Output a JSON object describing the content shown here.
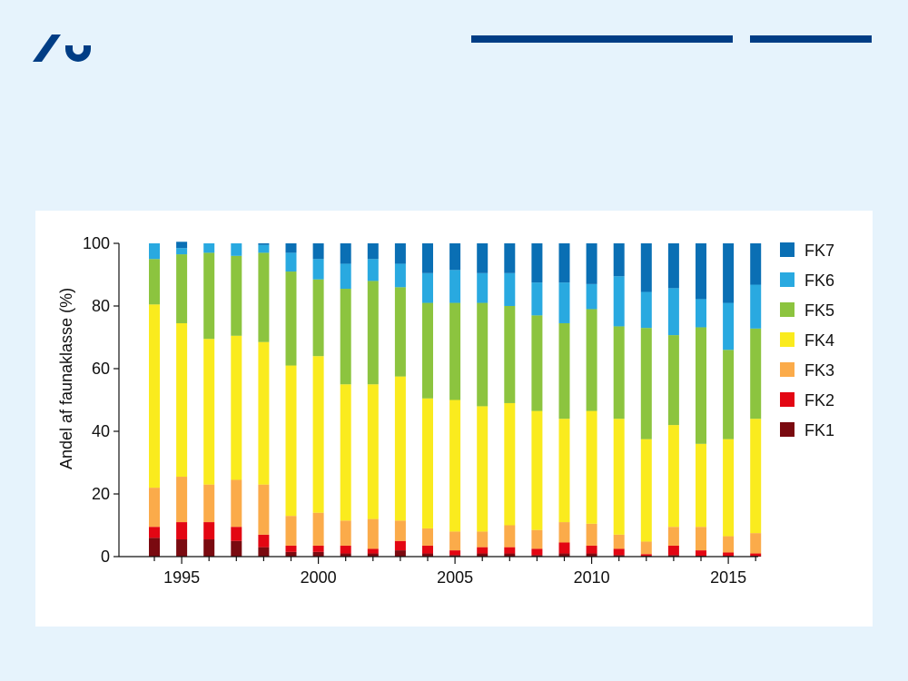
{
  "colors": {
    "background": "#e6f3fc",
    "brand_blue": "#003d85",
    "panel": "#ffffff"
  },
  "header": {
    "logo_icon": "university-logo-icon"
  },
  "chart_data": {
    "type": "bar",
    "stacked": true,
    "title": "",
    "xlabel": "",
    "ylabel": "Andel af faunaklasse (%)",
    "ylim": [
      0,
      100
    ],
    "yticks": [
      0,
      20,
      40,
      60,
      80,
      100
    ],
    "xticks": [
      1995,
      2000,
      2005,
      2010,
      2015
    ],
    "grid": false,
    "legend_position": "right",
    "categories": [
      1994,
      1995,
      1996,
      1997,
      1998,
      1999,
      2000,
      2001,
      2002,
      2003,
      2004,
      2005,
      2006,
      2007,
      2008,
      2009,
      2010,
      2011,
      2012,
      2013,
      2014,
      2015,
      2016
    ],
    "series": [
      {
        "name": "FK1",
        "color": "#7a0a10",
        "values": [
          6,
          5.5,
          5.5,
          5,
          3,
          1.5,
          1.5,
          1,
          1,
          2,
          1,
          0.5,
          1,
          1,
          0.5,
          1,
          1,
          0.5,
          0.3,
          0.5,
          0.3,
          0.3,
          0.3
        ]
      },
      {
        "name": "FK2",
        "color": "#e30613",
        "values": [
          3.5,
          5.5,
          5.5,
          4.5,
          4,
          2,
          2,
          2.5,
          1.5,
          3,
          2.5,
          1.5,
          2,
          2,
          2,
          3.5,
          2.5,
          2,
          0.5,
          3,
          1.7,
          1,
          0.7
        ]
      },
      {
        "name": "FK3",
        "color": "#fbab4a",
        "values": [
          12.5,
          14.5,
          12,
          15,
          16,
          9.5,
          10.5,
          8,
          9.5,
          6.5,
          5.5,
          6,
          5,
          7,
          6,
          6.5,
          7,
          4.5,
          4,
          6,
          7.5,
          5.2,
          6.5
        ]
      },
      {
        "name": "FK4",
        "color": "#faeb1e",
        "values": [
          58.5,
          49,
          46.5,
          46,
          45.5,
          48,
          50,
          43.5,
          43,
          46,
          41.5,
          42,
          40,
          39,
          38,
          33,
          36,
          37,
          32.7,
          32.5,
          26.5,
          31,
          36.5
        ]
      },
      {
        "name": "FK5",
        "color": "#8cc43f",
        "values": [
          14.5,
          22,
          27.5,
          25.5,
          28.5,
          30,
          24.5,
          30.5,
          33,
          28.5,
          30.5,
          31,
          33,
          31,
          30.5,
          30.5,
          32.5,
          29.5,
          35.5,
          28.7,
          37.2,
          28.5,
          28.8
        ]
      },
      {
        "name": "FK6",
        "color": "#29a9e0",
        "values": [
          5,
          2,
          3,
          4,
          2.5,
          6,
          6.5,
          8,
          7,
          7.5,
          9.5,
          10.5,
          9.5,
          10.5,
          10.5,
          13,
          8,
          16,
          11.5,
          15,
          9,
          15,
          14
        ]
      },
      {
        "name": "FK7",
        "color": "#0a6fb4",
        "values": [
          0,
          2,
          0,
          0,
          0.5,
          3,
          5,
          6.5,
          5,
          6.5,
          9.5,
          8.5,
          9.5,
          9.5,
          12.5,
          12.5,
          13,
          10.5,
          15.5,
          14.3,
          17.8,
          19,
          13.2
        ]
      }
    ]
  }
}
